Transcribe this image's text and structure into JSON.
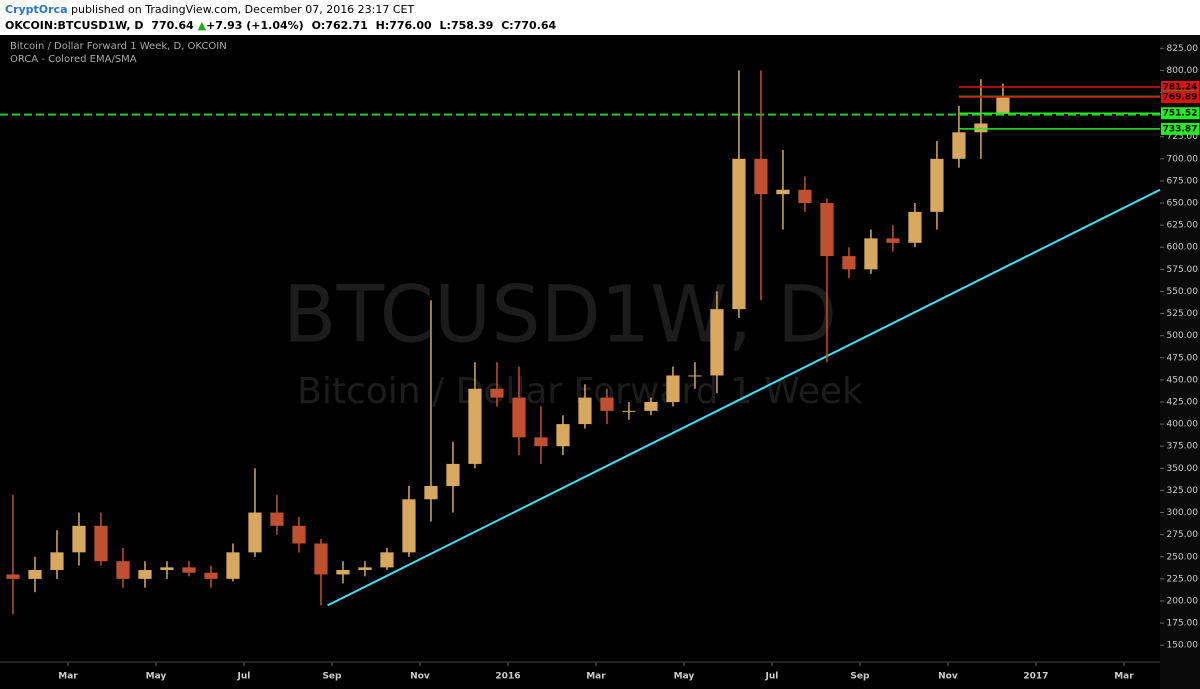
{
  "header": {
    "publisher": "CryptOrca",
    "published": "published on TradingView.com, December 07, 2016 23:17 CET",
    "symbol": "OKCOIN:BTCUSD1W, D",
    "last": "770.64",
    "arrow": "▲",
    "change": "+7.93 (+1.04%)",
    "o_label": "O:",
    "o": "762.71",
    "h_label": "H:",
    "h": "776.00",
    "l_label": "L:",
    "l": "758.39",
    "c_label": "C:",
    "c": "770.64"
  },
  "chart_data": {
    "type": "candlestick",
    "title": "Bitcoin / Dollar Forward 1 Week, D, OKCOIN",
    "subtitle": "ORCA - Colored EMA/SMA",
    "watermark": [
      "BTCUSD1W, D",
      "Bitcoin / Dollar Forward 1 Week"
    ],
    "categories": [
      null,
      null,
      null,
      null,
      null,
      null,
      null,
      null,
      null,
      null,
      null,
      null,
      null,
      null,
      null,
      null,
      null,
      null,
      null,
      null,
      null,
      null,
      null,
      null,
      null,
      null,
      null,
      null,
      null,
      null,
      null,
      null,
      null,
      null,
      null,
      null,
      null,
      null,
      null,
      null,
      null,
      null,
      null,
      null,
      null,
      null
    ],
    "open": [
      230,
      225,
      235,
      255,
      285,
      245,
      225,
      235,
      238,
      232,
      225,
      255,
      300,
      285,
      265,
      230,
      235,
      238,
      255,
      315,
      330,
      355,
      440,
      430,
      385,
      375,
      400,
      430,
      415,
      415,
      425,
      455,
      455,
      530,
      700,
      660,
      665,
      650,
      590,
      575,
      610,
      605,
      640,
      700,
      730,
      752
    ],
    "high": [
      320,
      250,
      280,
      300,
      300,
      260,
      245,
      245,
      245,
      240,
      265,
      350,
      320,
      295,
      270,
      245,
      245,
      260,
      330,
      540,
      380,
      470,
      470,
      465,
      420,
      410,
      445,
      440,
      425,
      430,
      465,
      470,
      550,
      800,
      800,
      710,
      680,
      655,
      600,
      620,
      625,
      650,
      720,
      760,
      790,
      785
    ],
    "low": [
      185,
      210,
      225,
      240,
      240,
      215,
      215,
      225,
      228,
      215,
      222,
      250,
      275,
      255,
      195,
      220,
      228,
      235,
      250,
      290,
      300,
      350,
      420,
      365,
      355,
      365,
      395,
      400,
      405,
      410,
      420,
      440,
      435,
      520,
      540,
      620,
      640,
      470,
      565,
      570,
      595,
      600,
      620,
      690,
      700,
      750
    ],
    "close": [
      225,
      235,
      255,
      285,
      245,
      225,
      235,
      238,
      232,
      225,
      255,
      300,
      285,
      265,
      230,
      235,
      238,
      255,
      315,
      330,
      355,
      440,
      430,
      385,
      375,
      400,
      430,
      415,
      415,
      425,
      455,
      455,
      530,
      700,
      660,
      665,
      650,
      590,
      575,
      610,
      605,
      640,
      700,
      730,
      740,
      770.64
    ],
    "up_color": "#d8a860",
    "down_color": "#c05030",
    "xlim": [
      -0.59,
      52.14
    ],
    "xticks": [
      {
        "value": 2.5,
        "label": "Mar"
      },
      {
        "value": 6.5,
        "label": "May"
      },
      {
        "value": 10.5,
        "label": "Jul"
      },
      {
        "value": 14.5,
        "label": "Sep"
      },
      {
        "value": 18.5,
        "label": "Nov"
      },
      {
        "value": 22.5,
        "label": "2016"
      },
      {
        "value": 26.5,
        "label": "Mar"
      },
      {
        "value": 30.5,
        "label": "May"
      },
      {
        "value": 34.5,
        "label": "Jul"
      },
      {
        "value": 38.5,
        "label": "Sep"
      },
      {
        "value": 42.5,
        "label": "Nov"
      },
      {
        "value": 46.5,
        "label": "2017"
      },
      {
        "value": 50.5,
        "label": "Mar"
      }
    ],
    "ylim": [
      131,
      840
    ],
    "yticks": [
      {
        "value": 150,
        "label": "150.00"
      },
      {
        "value": 175,
        "label": "175.00"
      },
      {
        "value": 200,
        "label": "200.00"
      },
      {
        "value": 225,
        "label": "225.00"
      },
      {
        "value": 250,
        "label": "250.00"
      },
      {
        "value": 275,
        "label": "275.00"
      },
      {
        "value": 300,
        "label": "300.00"
      },
      {
        "value": 325,
        "label": "325.00"
      },
      {
        "value": 350,
        "label": "350.00"
      },
      {
        "value": 375,
        "label": "375.00"
      },
      {
        "value": 400,
        "label": "400.00"
      },
      {
        "value": 425,
        "label": "425.00"
      },
      {
        "value": 450,
        "label": "450.00"
      },
      {
        "value": 475,
        "label": "475.00"
      },
      {
        "value": 500,
        "label": "500.00"
      },
      {
        "value": 525,
        "label": "525.00"
      },
      {
        "value": 550,
        "label": "550.00"
      },
      {
        "value": 575,
        "label": "575.00"
      },
      {
        "value": 600,
        "label": "600.00"
      },
      {
        "value": 625,
        "label": "625.00"
      },
      {
        "value": 650,
        "label": "650.00"
      },
      {
        "value": 675,
        "label": "675.00"
      },
      {
        "value": 700,
        "label": "700.00"
      },
      {
        "value": 725,
        "label": "725.00"
      },
      {
        "value": 750,
        "label": "750.00"
      },
      {
        "value": 775,
        "label": "775.00"
      },
      {
        "value": 800,
        "label": "800.00"
      },
      {
        "value": 825,
        "label": "825.00"
      }
    ],
    "price_labels": [
      {
        "value": 781.24,
        "color": "#e01010"
      },
      {
        "value": 770.64,
        "color": "#22aa22"
      },
      {
        "value": 769.89,
        "color": "#e01010"
      },
      {
        "value": 751.52,
        "color": "#22ee22"
      },
      {
        "value": 733.87,
        "color": "#22ee22"
      }
    ],
    "hline": {
      "value": 750,
      "color": "#22cc22"
    },
    "trendline": {
      "x": [
        14.3,
        52.14
      ],
      "y": [
        195,
        665
      ],
      "color": "#40e0f0"
    }
  }
}
